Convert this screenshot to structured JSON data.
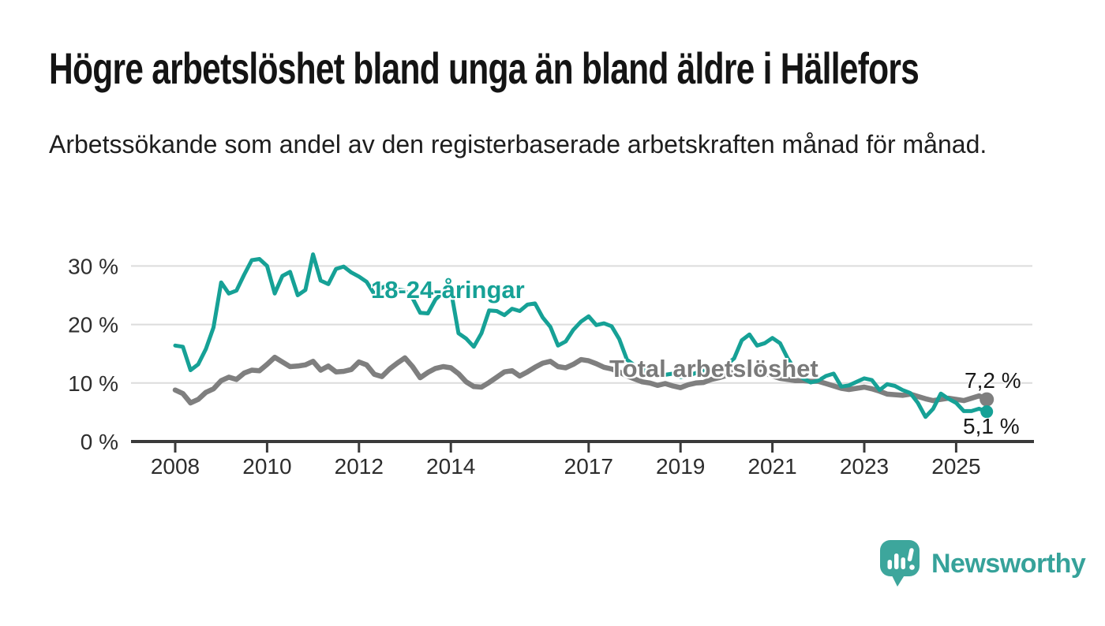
{
  "header": {
    "title": "Högre arbetslöshet bland unga än bland äldre i Hällefors",
    "subtitle": "Arbetssökande som andel av den registerbaserade arbetskraften månad för månad."
  },
  "footer": {
    "brand": "Newsworthy"
  },
  "chart_data": {
    "type": "line",
    "title": "Högre arbetslöshet bland unga än bland äldre i Hällefors",
    "subtitle": "Arbetssökande som andel av den registerbaserade arbetskraften månad för månad.",
    "grid": "horizontal-only",
    "legend_position": "inline-labels-on-lines",
    "ylim": [
      0,
      33
    ],
    "time_start": "2008-01",
    "time_end": "2025-09",
    "points_per_year": 6,
    "start_year": 2008,
    "y_axis": {
      "ticks": [
        0,
        10,
        20,
        30
      ],
      "labels": [
        "0 %",
        "10 %",
        "20 %",
        "30 %"
      ]
    },
    "x_axis": {
      "years": [
        2008,
        2010,
        2012,
        2014,
        2017,
        2019,
        2021,
        2023,
        2025
      ],
      "labels": [
        "2008",
        "2010",
        "2012",
        "2014",
        "2017",
        "2019",
        "2021",
        "2023",
        "2025"
      ]
    },
    "colors": {
      "youth": "#16a196",
      "total": "#7f7f7f",
      "grid": "#dcdcdc",
      "axis": "#3a3a3a",
      "axis_text": "#2d2d2d"
    },
    "series": [
      {
        "name": "Total arbetslöshet",
        "color": "#7f7f7f",
        "width": 6.5,
        "dot_radius": 9,
        "end_label": "7,2 %",
        "end_value": 7.2,
        "values": [
          8.8,
          8.2,
          6.6,
          7.2,
          8.4,
          9.0,
          10.4,
          11.0,
          10.6,
          11.7,
          12.2,
          12.1,
          13.2,
          14.4,
          13.6,
          12.8,
          12.9,
          13.1,
          13.7,
          12.2,
          12.9,
          11.9,
          12.0,
          12.3,
          13.6,
          13.1,
          11.5,
          11.1,
          12.4,
          13.4,
          14.3,
          12.8,
          10.9,
          11.8,
          12.5,
          12.8,
          12.6,
          11.6,
          10.2,
          9.4,
          9.3,
          10.1,
          11.0,
          11.9,
          12.1,
          11.2,
          11.9,
          12.7,
          13.4,
          13.7,
          12.8,
          12.6,
          13.2,
          14.0,
          13.8,
          13.3,
          12.7,
          12.4,
          11.9,
          11.2,
          10.7,
          10.2,
          10.0,
          9.6,
          9.9,
          9.5,
          9.2,
          9.7,
          10.0,
          10.1,
          10.6,
          10.9,
          11.3,
          11.9,
          12.2,
          12.3,
          12.0,
          11.7,
          11.2,
          10.8,
          10.6,
          10.4,
          10.4,
          10.3,
          10.3,
          9.9,
          9.5,
          9.1,
          8.9,
          9.1,
          9.3,
          9.0,
          8.6,
          8.1,
          8.0,
          7.9,
          8.1,
          7.7,
          7.3,
          7.0,
          7.2,
          7.4,
          7.2,
          7.0,
          7.4,
          7.8,
          7.2
        ]
      },
      {
        "name": "18-24-åringar",
        "color": "#16a196",
        "width": 5,
        "dot_radius": 8,
        "end_label": "5,1 %",
        "end_value": 5.1,
        "values": [
          16.4,
          16.2,
          12.2,
          13.2,
          15.8,
          19.5,
          27.2,
          25.3,
          25.8,
          28.5,
          31.0,
          31.2,
          30.0,
          25.3,
          28.3,
          29.0,
          25.0,
          25.9,
          32.0,
          27.5,
          26.9,
          29.5,
          29.9,
          28.9,
          28.2,
          27.3,
          25.2,
          26.3,
          26.8,
          26.0,
          25.8,
          24.5,
          22.0,
          21.9,
          24.3,
          25.5,
          25.9,
          18.5,
          17.6,
          16.2,
          18.5,
          22.4,
          22.3,
          21.6,
          22.7,
          22.3,
          23.4,
          23.6,
          21.2,
          19.6,
          16.4,
          17.1,
          19.1,
          20.5,
          21.4,
          19.9,
          20.2,
          19.7,
          17.5,
          14.0,
          13.0,
          12.3,
          11.7,
          11.2,
          11.4,
          11.6,
          11.0,
          11.3,
          11.7,
          12.1,
          12.4,
          12.8,
          13.1,
          14.2,
          17.3,
          18.3,
          16.4,
          16.8,
          17.7,
          16.8,
          14.2,
          12.2,
          10.8,
          10.1,
          10.4,
          11.2,
          11.6,
          9.4,
          9.6,
          10.2,
          10.8,
          10.5,
          8.8,
          9.8,
          9.5,
          8.8,
          8.3,
          6.6,
          4.2,
          5.6,
          8.2,
          7.3,
          6.6,
          5.2,
          5.2,
          5.6,
          5.1
        ]
      }
    ]
  }
}
